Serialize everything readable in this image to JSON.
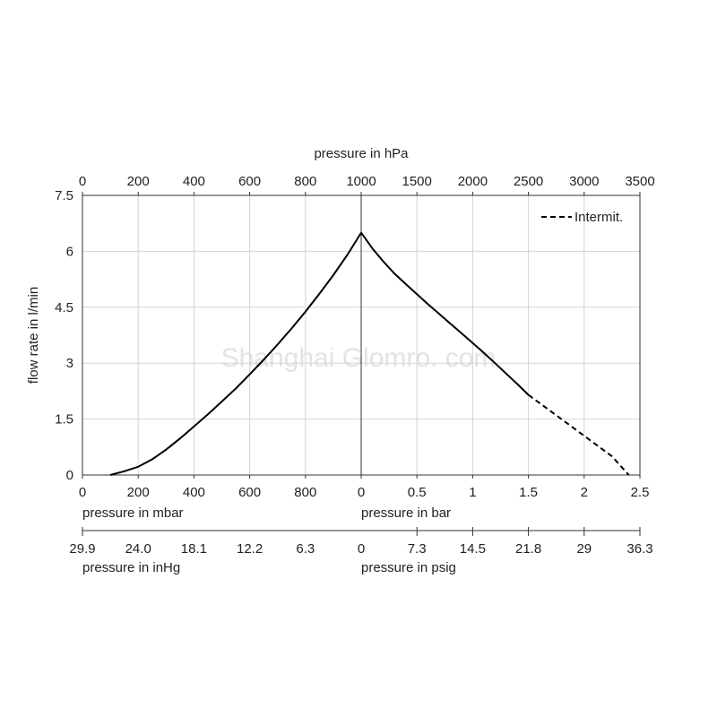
{
  "chart_data": {
    "type": "line",
    "watermark": "Shanghai Glomro. com",
    "y_axis": {
      "label": "flow rate in l/min",
      "ticks": [
        "7.5",
        "6",
        "4.5",
        "3",
        "1.5",
        "0"
      ],
      "ylim": [
        0,
        7.5
      ]
    },
    "top_axis": {
      "label": "pressure in hPa",
      "vacuum_ticks": [
        "0",
        "200",
        "400",
        "600",
        "800"
      ],
      "pressure_ticks": [
        "1000",
        "1500",
        "2000",
        "2500",
        "3000",
        "3500"
      ]
    },
    "bottom_axis_1": {
      "vacuum_label": "pressure in mbar",
      "vacuum_ticks": [
        "0",
        "200",
        "400",
        "600",
        "800"
      ],
      "pressure_label": "pressure in bar",
      "pressure_ticks": [
        "0",
        "0.5",
        "1",
        "1.5",
        "2",
        "2.5"
      ]
    },
    "bottom_axis_2": {
      "vacuum_label": "pressure in inHg",
      "vacuum_ticks": [
        "29.9",
        "24.0",
        "18.1",
        "12.2",
        "6.3"
      ],
      "pressure_label": "pressure in psig",
      "pressure_ticks": [
        "0",
        "7.3",
        "14.5",
        "21.8",
        "29",
        "36.3"
      ]
    },
    "legend": {
      "label": "Intermit.",
      "position": "top-right"
    },
    "grid": true,
    "series": [
      {
        "section": "vacuum",
        "x_unit": "mbar",
        "x": [
          100,
          150,
          200,
          250,
          300,
          350,
          400,
          450,
          500,
          550,
          600,
          650,
          700,
          750,
          800,
          850,
          900,
          950,
          1000
        ],
        "y": [
          0,
          0.1,
          0.22,
          0.42,
          0.68,
          0.98,
          1.3,
          1.63,
          1.97,
          2.32,
          2.7,
          3.09,
          3.5,
          3.93,
          4.38,
          4.86,
          5.36,
          5.9,
          6.5
        ],
        "style": "solid"
      },
      {
        "section": "pressure",
        "x_unit": "bar",
        "x": [
          0,
          0.1,
          0.2,
          0.3,
          0.4,
          0.5,
          0.6,
          0.7,
          0.8,
          0.9,
          1.0,
          1.1,
          1.2,
          1.3,
          1.4,
          1.5
        ],
        "y": [
          6.5,
          6.08,
          5.72,
          5.4,
          5.12,
          4.85,
          4.58,
          4.32,
          4.06,
          3.8,
          3.54,
          3.28,
          3.0,
          2.72,
          2.44,
          2.15
        ],
        "style": "solid"
      },
      {
        "section": "pressure",
        "name": "Intermit.",
        "x_unit": "bar",
        "x": [
          1.5,
          1.75,
          2.0,
          2.25,
          2.4
        ],
        "y": [
          2.15,
          1.6,
          1.05,
          0.5,
          0
        ],
        "style": "dashed"
      }
    ]
  }
}
